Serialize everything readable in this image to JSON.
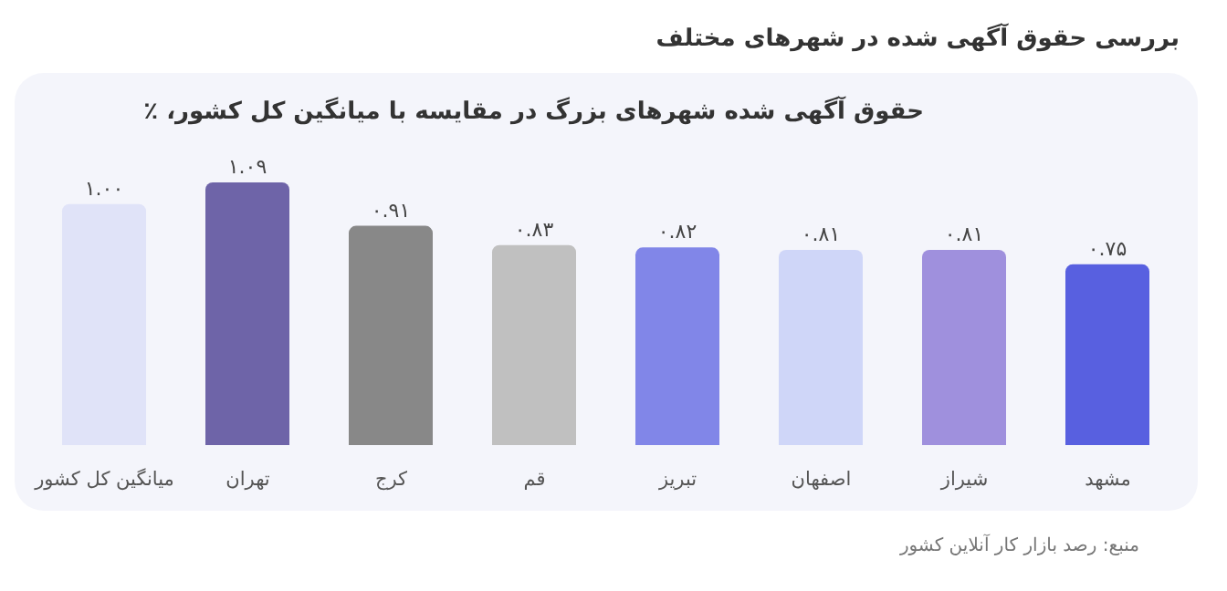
{
  "chart_data": {
    "type": "bar",
    "title": "بررسی حقوق آگهی شده در شهرهای مختلف",
    "subtitle": "حقوق آگهی شده شهرهای بزرگ در مقایسه با میانگین کل کشور، ٪",
    "categories": [
      "میانگین کل کشور",
      "تهران",
      "کرج",
      "قم",
      "تبریز",
      "اصفهان",
      "شیراز",
      "مشهد"
    ],
    "values": [
      1.0,
      1.09,
      0.91,
      0.83,
      0.82,
      0.81,
      0.81,
      0.75
    ],
    "value_labels": [
      "۱.۰۰",
      "۱.۰۹",
      "۰.۹۱",
      "۰.۸۳",
      "۰.۸۲",
      "۰.۸۱",
      "۰.۸۱",
      "۰.۷۵"
    ],
    "colors": [
      "#e0e3f8",
      "#6e64a8",
      "#888888",
      "#c0c0c0",
      "#8186e8",
      "#cfd6f8",
      "#9f90dd",
      "#5860e0"
    ],
    "annotations": [
      "منبع: رصد بازار کار آنلاین کشور"
    ],
    "grid": false,
    "legend": false
  }
}
